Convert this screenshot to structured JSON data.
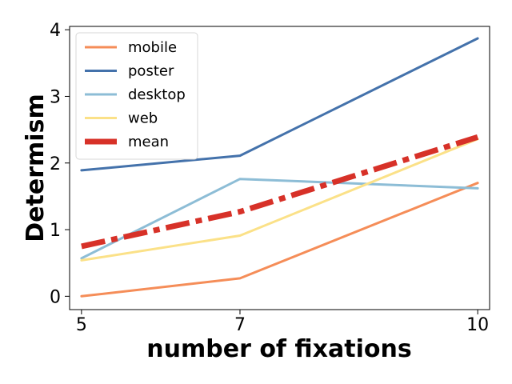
{
  "chart_data": {
    "type": "line",
    "xlabel": "number of fixations",
    "ylabel": "Determism",
    "x": [
      5,
      7,
      10
    ],
    "xlim": [
      4.85,
      10.15
    ],
    "ylim": [
      -0.2,
      4.05
    ],
    "xticks": [
      5,
      7,
      10
    ],
    "yticks": [
      0,
      1,
      2,
      3,
      4
    ],
    "grid": false,
    "legend_position": "top-left",
    "series": [
      {
        "name": "mobile",
        "values": [
          0.0,
          0.27,
          1.7
        ],
        "color": "#f58d58",
        "style": "solid"
      },
      {
        "name": "poster",
        "values": [
          1.89,
          2.11,
          3.87
        ],
        "color": "#4472ab",
        "style": "solid"
      },
      {
        "name": "desktop",
        "values": [
          0.57,
          1.76,
          1.62
        ],
        "color": "#8dbdd6",
        "style": "solid"
      },
      {
        "name": "web",
        "values": [
          0.54,
          0.91,
          2.36
        ],
        "color": "#fbe188",
        "style": "solid"
      },
      {
        "name": "mean",
        "values": [
          0.75,
          1.27,
          2.39
        ],
        "color": "#d73128",
        "style": "dashdot"
      }
    ]
  }
}
